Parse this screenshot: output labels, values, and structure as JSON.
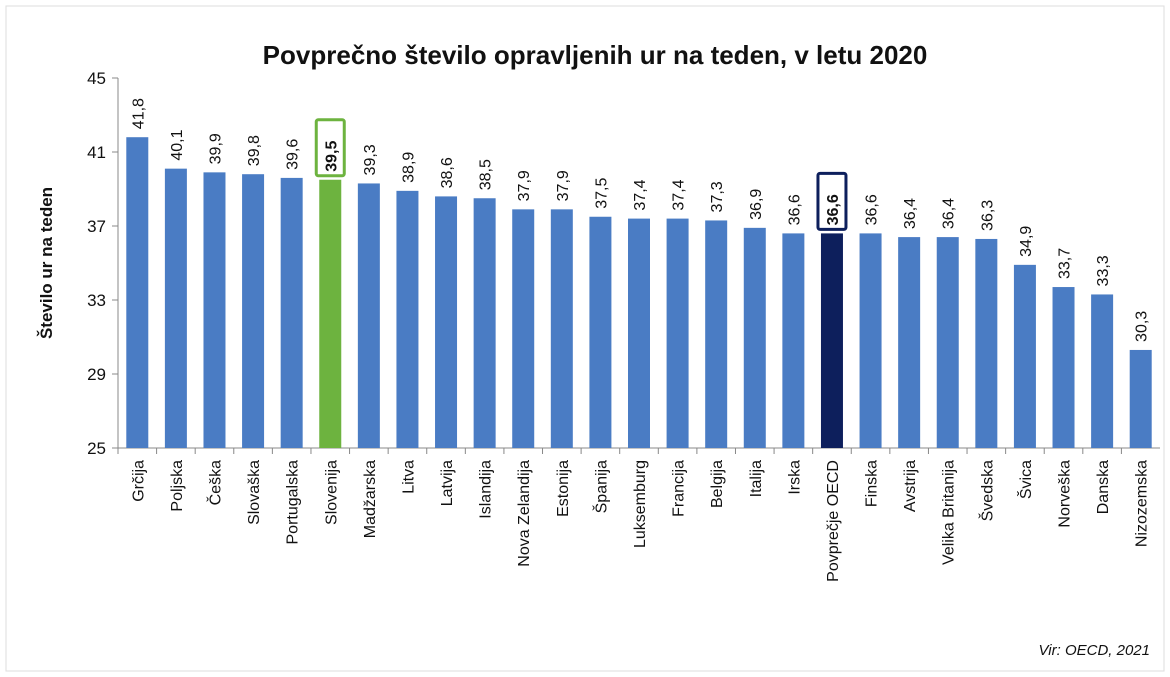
{
  "chart_data": {
    "type": "bar",
    "title": "Povprečno število opravljenih ur na teden, v letu 2020",
    "y_label": "Število ur na teden",
    "source": "Vir: OECD, 2021",
    "categories": [
      "Grčija",
      "Poljska",
      "Češka",
      "Slovaška",
      "Portugalska",
      "Slovenija",
      "Madžarska",
      "Litva",
      "Latvija",
      "Islandija",
      "Nova Zelandija",
      "Estonija",
      "Španija",
      "Luksemburg",
      "Francija",
      "Belgija",
      "Italija",
      "Irska",
      "Povprečje OECD",
      "Finska",
      "Avstrija",
      "Velika Britanija",
      "Švedska",
      "Švica",
      "Norveška",
      "Danska",
      "Nizozemska"
    ],
    "values": [
      41.8,
      40.1,
      39.9,
      39.8,
      39.6,
      39.5,
      39.3,
      38.9,
      38.6,
      38.5,
      37.9,
      37.9,
      37.5,
      37.4,
      37.4,
      37.3,
      36.9,
      36.6,
      36.6,
      36.6,
      36.4,
      36.4,
      36.3,
      34.9,
      33.7,
      33.3,
      30.3
    ],
    "value_labels": [
      "41,8",
      "40,1",
      "39,9",
      "39,8",
      "39,6",
      "39,5",
      "39,3",
      "38,9",
      "38,6",
      "38,5",
      "37,9",
      "37,9",
      "37,5",
      "37,4",
      "37,4",
      "37,3",
      "36,9",
      "36,6",
      "36,6",
      "36,6",
      "36,4",
      "36,4",
      "36,3",
      "34,9",
      "33,7",
      "33,3",
      "30,3"
    ],
    "color": "#4a7cc4",
    "colors": [
      "#4a7cc4",
      "#4a7cc4",
      "#4a7cc4",
      "#4a7cc4",
      "#4a7cc4",
      "#6db33f",
      "#4a7cc4",
      "#4a7cc4",
      "#4a7cc4",
      "#4a7cc4",
      "#4a7cc4",
      "#4a7cc4",
      "#4a7cc4",
      "#4a7cc4",
      "#4a7cc4",
      "#4a7cc4",
      "#4a7cc4",
      "#4a7cc4",
      "#0d1f5c",
      "#4a7cc4",
      "#4a7cc4",
      "#4a7cc4",
      "#4a7cc4",
      "#4a7cc4",
      "#4a7cc4",
      "#4a7cc4",
      "#4a7cc4"
    ],
    "ylim": [
      25,
      45
    ],
    "yticks": [
      25,
      29,
      33,
      37,
      41,
      45
    ],
    "grid": false
  }
}
